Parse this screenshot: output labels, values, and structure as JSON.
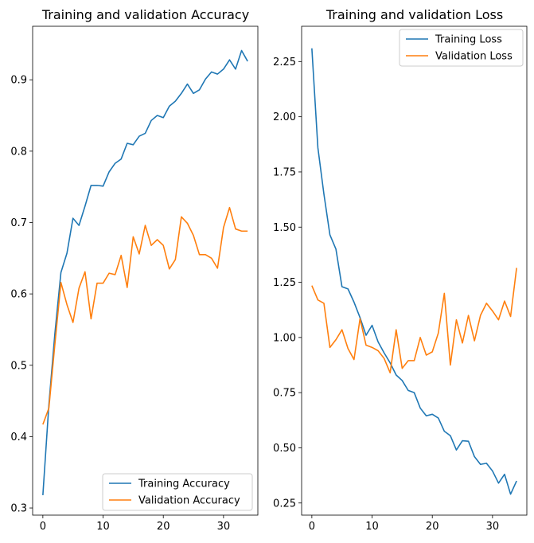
{
  "chart_data": [
    {
      "type": "line",
      "title": "Training and validation Accuracy",
      "xlabel": "",
      "ylabel": "",
      "xlim": [
        -1.7,
        35.7
      ],
      "ylim": [
        0.29,
        0.975
      ],
      "xticks": [
        0,
        10,
        20,
        30
      ],
      "yticks": [
        0.3,
        0.4,
        0.5,
        0.6,
        0.7,
        0.8,
        0.9
      ],
      "ytick_labels": [
        "0.3",
        "0.4",
        "0.5",
        "0.6",
        "0.7",
        "0.8",
        "0.9"
      ],
      "grid": false,
      "legend_position": "lower right",
      "x": [
        0,
        1,
        2,
        3,
        4,
        5,
        6,
        7,
        8,
        9,
        10,
        11,
        12,
        13,
        14,
        15,
        16,
        17,
        18,
        19,
        20,
        21,
        22,
        23,
        24,
        25,
        26,
        27,
        28,
        29,
        30,
        31,
        32,
        33,
        34
      ],
      "series": [
        {
          "name": "Training Accuracy",
          "color": "#1f77b4",
          "values": [
            0.318,
            0.445,
            0.545,
            0.63,
            0.657,
            0.706,
            0.696,
            0.723,
            0.752,
            0.752,
            0.751,
            0.771,
            0.783,
            0.789,
            0.811,
            0.809,
            0.821,
            0.825,
            0.843,
            0.85,
            0.847,
            0.863,
            0.87,
            0.881,
            0.894,
            0.881,
            0.886,
            0.901,
            0.911,
            0.908,
            0.915,
            0.928,
            0.915,
            0.941,
            0.926
          ]
        },
        {
          "name": "Validation Accuracy",
          "color": "#ff7f0e",
          "values": [
            0.417,
            0.44,
            0.53,
            0.616,
            0.585,
            0.56,
            0.608,
            0.631,
            0.565,
            0.615,
            0.615,
            0.629,
            0.627,
            0.654,
            0.609,
            0.68,
            0.656,
            0.696,
            0.668,
            0.676,
            0.668,
            0.635,
            0.648,
            0.708,
            0.699,
            0.682,
            0.655,
            0.655,
            0.65,
            0.636,
            0.693,
            0.721,
            0.691,
            0.688,
            0.688
          ]
        }
      ]
    },
    {
      "type": "line",
      "title": "Training and validation Loss",
      "xlabel": "",
      "ylabel": "",
      "xlim": [
        -1.7,
        35.7
      ],
      "ylim": [
        0.195,
        2.41
      ],
      "xticks": [
        0,
        10,
        20,
        30
      ],
      "yticks": [
        0.25,
        0.5,
        0.75,
        1.0,
        1.25,
        1.5,
        1.75,
        2.0,
        2.25
      ],
      "ytick_labels": [
        "0.25",
        "0.50",
        "0.75",
        "1.00",
        "1.25",
        "1.50",
        "1.75",
        "2.00",
        "2.25"
      ],
      "grid": false,
      "legend_position": "upper right",
      "x": [
        0,
        1,
        2,
        3,
        4,
        5,
        6,
        7,
        8,
        9,
        10,
        11,
        12,
        13,
        14,
        15,
        16,
        17,
        18,
        19,
        20,
        21,
        22,
        23,
        24,
        25,
        26,
        27,
        28,
        29,
        30,
        31,
        32,
        33,
        34
      ],
      "series": [
        {
          "name": "Training Loss",
          "color": "#1f77b4",
          "values": [
            2.31,
            1.86,
            1.65,
            1.465,
            1.4,
            1.23,
            1.22,
            1.16,
            1.09,
            1.01,
            1.055,
            0.98,
            0.93,
            0.885,
            0.83,
            0.805,
            0.76,
            0.75,
            0.68,
            0.645,
            0.652,
            0.635,
            0.575,
            0.555,
            0.49,
            0.532,
            0.53,
            0.46,
            0.425,
            0.43,
            0.395,
            0.34,
            0.38,
            0.29,
            0.35
          ]
        },
        {
          "name": "Validation Loss",
          "color": "#ff7f0e",
          "values": [
            1.235,
            1.17,
            1.155,
            0.955,
            0.99,
            1.035,
            0.95,
            0.9,
            1.085,
            0.965,
            0.955,
            0.94,
            0.905,
            0.84,
            1.035,
            0.86,
            0.895,
            0.895,
            1.0,
            0.92,
            0.935,
            1.02,
            1.2,
            0.875,
            1.08,
            0.975,
            1.1,
            0.985,
            1.1,
            1.155,
            1.12,
            1.08,
            1.165,
            1.095,
            1.315
          ]
        }
      ]
    }
  ]
}
